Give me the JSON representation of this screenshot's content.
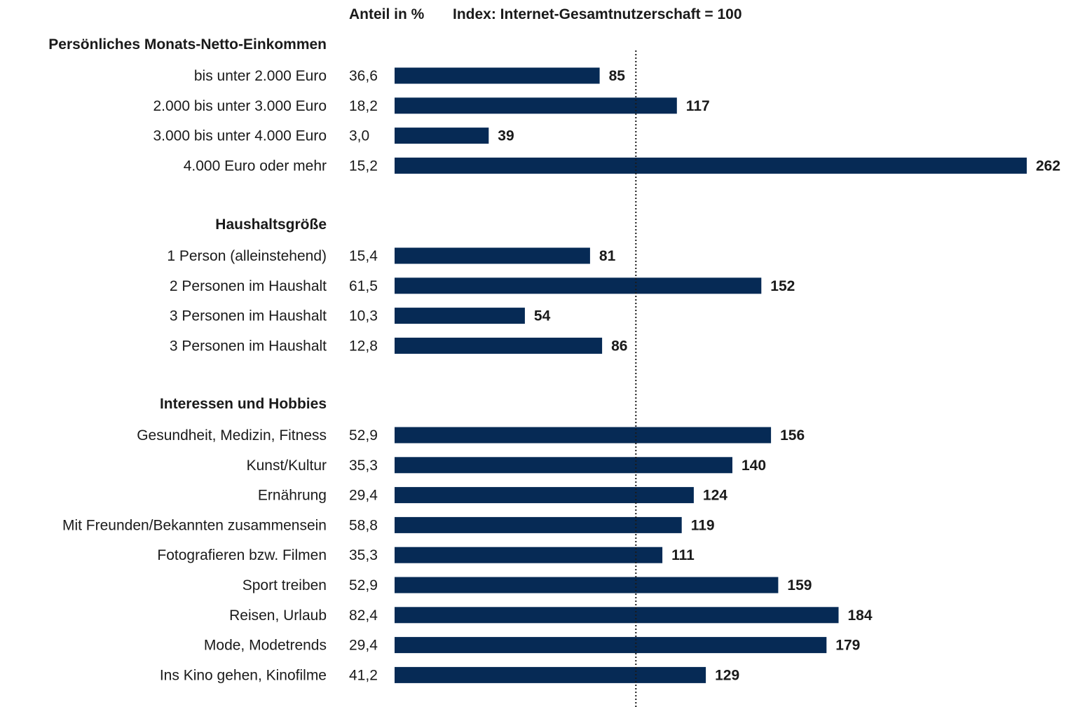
{
  "colors": {
    "bar": "#062a55",
    "text": "#1a1a1a",
    "reference_line": "#1a1a1a"
  },
  "chart_data": {
    "type": "bar",
    "orientation": "horizontal",
    "column_headers": {
      "share": "Anteil in %",
      "index": "Index: Internet-Gesamtnutzerschaft = 100"
    },
    "reference_value": 100,
    "reference_line_style": "dotted",
    "legend": "none",
    "grid": false,
    "xlim": [
      0,
      262
    ],
    "groups": [
      {
        "title": "Persönliches Monats-Netto-Einkommen",
        "rows": [
          {
            "label": "bis unter 2.000 Euro",
            "share": "36,6",
            "index": 85
          },
          {
            "label": "2.000 bis unter 3.000 Euro",
            "share": "18,2",
            "index": 117
          },
          {
            "label": "3.000 bis unter 4.000 Euro",
            "share": "3,0",
            "index": 39
          },
          {
            "label": "4.000 Euro oder mehr",
            "share": "15,2",
            "index": 262
          }
        ]
      },
      {
        "title": "Haushaltsgröße",
        "rows": [
          {
            "label": "1 Person (alleinstehend)",
            "share": "15,4",
            "index": 81
          },
          {
            "label": "2 Personen im Haushalt",
            "share": "61,5",
            "index": 152
          },
          {
            "label": "3 Personen im Haushalt",
            "share": "10,3",
            "index": 54
          },
          {
            "label": "3 Personen im Haushalt",
            "share": "12,8",
            "index": 86
          }
        ]
      },
      {
        "title": "Interessen und Hobbies",
        "rows": [
          {
            "label": "Gesundheit, Medizin, Fitness",
            "share": "52,9",
            "index": 156
          },
          {
            "label": "Kunst/Kultur",
            "share": "35,3",
            "index": 140
          },
          {
            "label": "Ernährung",
            "share": "29,4",
            "index": 124
          },
          {
            "label": "Mit Freunden/Bekannten zusammensein",
            "share": "58,8",
            "index": 119
          },
          {
            "label": "Fotografieren bzw. Filmen",
            "share": "35,3",
            "index": 111
          },
          {
            "label": "Sport treiben",
            "share": "52,9",
            "index": 159
          },
          {
            "label": "Reisen, Urlaub",
            "share": "82,4",
            "index": 184
          },
          {
            "label": "Mode, Modetrends",
            "share": "29,4",
            "index": 179
          },
          {
            "label": "Ins Kino gehen, Kinofilme",
            "share": "41,2",
            "index": 129
          }
        ]
      }
    ]
  }
}
